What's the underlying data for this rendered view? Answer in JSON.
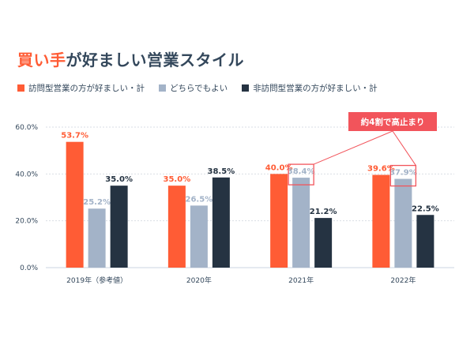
{
  "title": {
    "accent": "買い手",
    "rest": "が好ましい営業スタイル"
  },
  "legend": [
    {
      "label": "訪問型営業の方が好ましい・計",
      "color": "#ff5c35"
    },
    {
      "label": "どちらでもよい",
      "color": "#a3b3c8"
    },
    {
      "label": "非訪問型営業の方が好ましい・計",
      "color": "#253342"
    }
  ],
  "callout": {
    "text": "約4割で高止まり",
    "color": "#f2545b"
  },
  "chart_data": {
    "type": "bar",
    "categories": [
      "2019年（参考値）",
      "2020年",
      "2021年",
      "2022年"
    ],
    "series": [
      {
        "name": "訪問型営業の方が好ましい・計",
        "values": [
          53.7,
          35.0,
          40.0,
          39.6
        ],
        "labels": [
          "53.7%",
          "35.0%",
          "40.0%",
          "39.6%"
        ],
        "color": "#ff5c35",
        "label_color": "#ff5c35"
      },
      {
        "name": "どちらでもよい",
        "values": [
          25.2,
          26.5,
          38.4,
          37.9
        ],
        "labels": [
          "25.2%",
          "26.5%",
          "38.4%",
          "37.9%"
        ],
        "color": "#a3b3c8",
        "label_color": "#a3b3c8"
      },
      {
        "name": "非訪問型営業の方が好ましい・計",
        "values": [
          35.0,
          38.5,
          21.2,
          22.5
        ],
        "labels": [
          "35.0%",
          "38.5%",
          "21.2%",
          "22.5%"
        ],
        "color": "#253342",
        "label_color": "#253342"
      }
    ],
    "yticks": [
      "0.0%",
      "20.0%",
      "40.0%",
      "60.0%"
    ],
    "ylim": [
      0,
      60
    ],
    "highlighted": [
      [
        2,
        1
      ],
      [
        3,
        1
      ]
    ],
    "grid": true,
    "legend_position": "top-left"
  }
}
